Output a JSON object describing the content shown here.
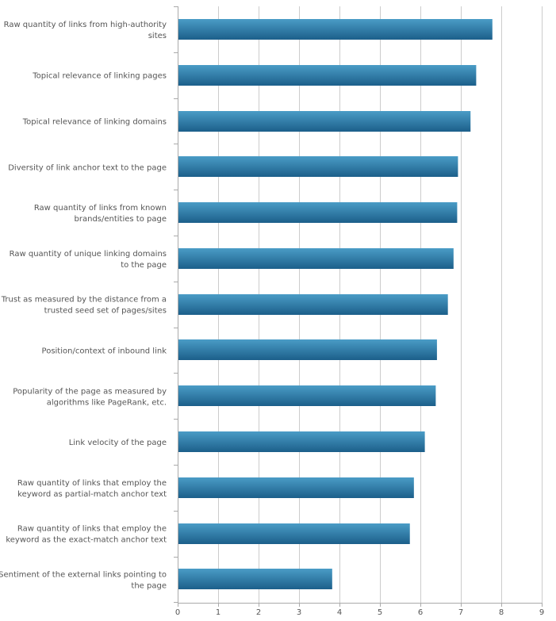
{
  "chart_data": {
    "type": "bar",
    "orientation": "horizontal",
    "title": "",
    "xlabel": "",
    "ylabel": "",
    "xlim": [
      0,
      9
    ],
    "x_ticks": [
      "0",
      "1",
      "2",
      "3",
      "4",
      "5",
      "6",
      "7",
      "8",
      "9"
    ],
    "grid": "vertical",
    "legend": "none",
    "colors": {
      "bar_top": "#4a9cc6",
      "bar_bottom": "#1c5f8a",
      "grid": "#cccccc",
      "axis": "#aaaaaa"
    },
    "categories": [
      [
        "Raw quantity of links from high-authority",
        "sites"
      ],
      [
        "Topical relevance of linking pages"
      ],
      [
        "Topical relevance of linking domains"
      ],
      [
        "Diversity of link anchor text to the page"
      ],
      [
        "Raw quantity of links from known",
        "brands/entities to page"
      ],
      [
        "Raw quantity of unique linking domains",
        "to the page"
      ],
      [
        "Trust as measured by the distance from a",
        "trusted seed set of pages/sites"
      ],
      [
        "Position/context of inbound link"
      ],
      [
        "Popularity of the page as measured by",
        "algorithms like PageRank, etc."
      ],
      [
        "Link velocity of the page"
      ],
      [
        "Raw quantity of links that employ the",
        "keyword as partial-match anchor text"
      ],
      [
        "Raw quantity of links that employ the",
        "keyword as the exact-match anchor text"
      ],
      [
        "Sentiment of the external links pointing to",
        "the page"
      ]
    ],
    "values": [
      7.78,
      7.38,
      7.24,
      6.93,
      6.91,
      6.82,
      6.68,
      6.41,
      6.38,
      6.11,
      5.84,
      5.74,
      3.82
    ]
  }
}
